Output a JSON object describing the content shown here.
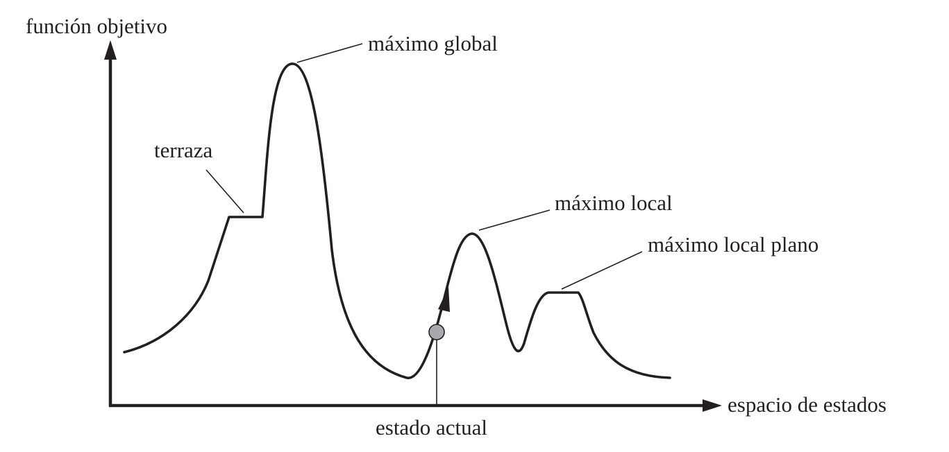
{
  "labels": {
    "y_axis": "función objetivo",
    "x_axis": "espacio de estados",
    "global_max": "máximo global",
    "terrace": "terraza",
    "local_max": "máximo local",
    "flat_local_max": "máximo local plano",
    "current_state": "estado actual"
  },
  "colors": {
    "ink": "#231f20",
    "state_marker": "#a7a9ac"
  }
}
